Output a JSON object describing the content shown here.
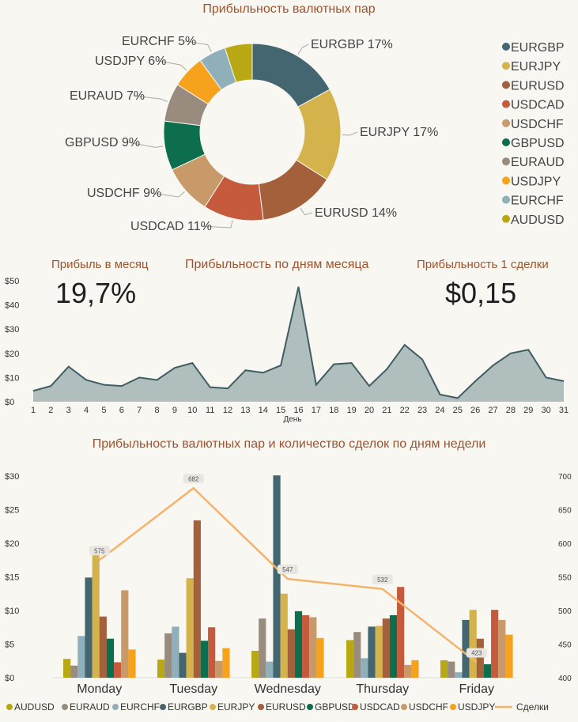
{
  "colors": {
    "EURGBP": "#436670",
    "EURJPY": "#d4b24c",
    "EURUSD": "#a3603a",
    "USDCAD": "#c55a3c",
    "USDCHF": "#c89a6a",
    "GBPUSD": "#0d6e4e",
    "EURAUD": "#9a8b7f",
    "USDJPY": "#f6a21c",
    "EURCHF": "#8fb0bb",
    "AUDUSD": "#b8a814",
    "deals": "#f5b26b",
    "area_fill": "#b0bfbd",
    "area_line": "#3f5d63"
  },
  "donut": {
    "chart_data": {
      "type": "pie",
      "title": "Прибыльность валютных пар",
      "slices": [
        {
          "name": "EURGBP",
          "value": 17,
          "label": "EURGBP 17%"
        },
        {
          "name": "EURJPY",
          "value": 17,
          "label": "EURJPY 17%"
        },
        {
          "name": "EURUSD",
          "value": 14,
          "label": "EURUSD 14%"
        },
        {
          "name": "USDCAD",
          "value": 11,
          "label": "USDCAD 11%"
        },
        {
          "name": "USDCHF",
          "value": 9,
          "label": "USDCHF 9%"
        },
        {
          "name": "GBPUSD",
          "value": 9,
          "label": "GBPUSD 9%"
        },
        {
          "name": "EURAUD",
          "value": 7,
          "label": "EURAUD 7%"
        },
        {
          "name": "USDJPY",
          "value": 6,
          "label": "USDJPY 6%"
        },
        {
          "name": "EURCHF",
          "value": 5,
          "label": "EURCHF 5%"
        },
        {
          "name": "AUDUSD",
          "value": 5,
          "label": ""
        }
      ],
      "legend": [
        "EURGBP",
        "EURJPY",
        "EURUSD",
        "USDCAD",
        "USDCHF",
        "GBPUSD",
        "EURAUD",
        "USDJPY",
        "EURCHF",
        "AUDUSD"
      ],
      "legend_position": "right"
    }
  },
  "kpi": {
    "month_label": "Прибыль в месяц",
    "month_value": "19,7%",
    "deal_label": "Прибыльность 1 сделки",
    "deal_value": "$0,15"
  },
  "daily": {
    "chart_data": {
      "type": "area",
      "title": "Прибыльность по дням месяца",
      "xlabel": "День",
      "x": [
        1,
        2,
        3,
        4,
        5,
        6,
        7,
        8,
        9,
        10,
        11,
        12,
        13,
        14,
        15,
        16,
        17,
        18,
        19,
        20,
        21,
        22,
        23,
        24,
        25,
        26,
        27,
        28,
        29,
        30,
        31
      ],
      "values": [
        4.5,
        6.5,
        14.5,
        9,
        7,
        6.5,
        10,
        9,
        14,
        16,
        6,
        5.5,
        13,
        12,
        15,
        47.5,
        7,
        15.5,
        16,
        6.5,
        13.5,
        23.5,
        17.5,
        3,
        1.5,
        8.5,
        15,
        20,
        21.5,
        10,
        8.5
      ],
      "yticks": [
        "$0",
        "$10",
        "$20",
        "$30",
        "$40",
        "$50"
      ],
      "ylim": [
        0,
        50
      ],
      "grid": false
    }
  },
  "weekly": {
    "chart_data": {
      "type": "bar",
      "title": "Прибыльность валютных пар и количество сделок по дням недели",
      "categories": [
        "Monday",
        "Tuesday",
        "Wednesday",
        "Thursday",
        "Friday"
      ],
      "series": [
        {
          "name": "AUDUSD",
          "values": [
            2.8,
            2.7,
            4.0,
            5.6,
            2.6
          ]
        },
        {
          "name": "EURAUD",
          "values": [
            1.8,
            6.6,
            8.8,
            6.8,
            2.4
          ]
        },
        {
          "name": "EURCHF",
          "values": [
            6.2,
            7.6,
            2.4,
            2.9,
            0.8
          ]
        },
        {
          "name": "EURGBP",
          "values": [
            14.9,
            3.7,
            30.1,
            7.6,
            8.6
          ]
        },
        {
          "name": "EURJPY",
          "values": [
            18.4,
            14.8,
            12.5,
            7.7,
            10.1
          ]
        },
        {
          "name": "EURUSD",
          "values": [
            9.1,
            23.4,
            7.2,
            8.8,
            5.8
          ]
        },
        {
          "name": "GBPUSD",
          "values": [
            5.8,
            5.5,
            9.9,
            9.3,
            2.0
          ]
        },
        {
          "name": "USDCAD",
          "values": [
            2.3,
            7.5,
            9.3,
            13.5,
            10.1
          ]
        },
        {
          "name": "USDCHF",
          "values": [
            13.0,
            2.5,
            9.0,
            1.9,
            8.6
          ]
        },
        {
          "name": "USDJPY",
          "values": [
            4.2,
            4.4,
            5.9,
            2.6,
            6.4
          ]
        }
      ],
      "line": {
        "name": "Сделки",
        "values": [
          575,
          682,
          547,
          532,
          423
        ],
        "labels": [
          "575",
          "682",
          "547",
          "532",
          "423"
        ]
      },
      "yticks_left": [
        "$0",
        "$5",
        "$10",
        "$15",
        "$20",
        "$25",
        "$30"
      ],
      "ylim_left": [
        0,
        30
      ],
      "yticks_right": [
        "400",
        "450",
        "500",
        "550",
        "600",
        "650",
        "700"
      ],
      "ylim_right": [
        400,
        700
      ],
      "legend_position": "bottom"
    }
  }
}
